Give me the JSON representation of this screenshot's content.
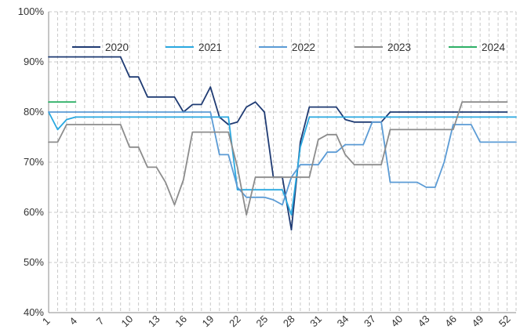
{
  "chart_data": {
    "type": "line",
    "title": "",
    "xlabel": "",
    "ylabel": "",
    "ylim": [
      40,
      100
    ],
    "y_ticks": [
      "40%",
      "50%",
      "60%",
      "70%",
      "80%",
      "90%",
      "100%"
    ],
    "y_tick_values": [
      40,
      50,
      60,
      70,
      80,
      90,
      100
    ],
    "x_ticks": [
      "1",
      "4",
      "7",
      "10",
      "13",
      "16",
      "19",
      "22",
      "25",
      "28",
      "31",
      "34",
      "37",
      "40",
      "43",
      "46",
      "49",
      "52"
    ],
    "x_range": [
      1,
      53
    ],
    "grid": true,
    "legend_position": "top",
    "series": [
      {
        "name": "2020",
        "color": "#1f3b73",
        "points": [
          [
            1,
            91
          ],
          [
            2,
            91
          ],
          [
            3,
            91
          ],
          [
            4,
            91
          ],
          [
            5,
            91
          ],
          [
            6,
            91
          ],
          [
            7,
            91
          ],
          [
            8,
            91
          ],
          [
            9,
            91
          ],
          [
            10,
            87
          ],
          [
            11,
            87
          ],
          [
            12,
            83
          ],
          [
            13,
            83
          ],
          [
            14,
            83
          ],
          [
            15,
            83
          ],
          [
            16,
            80
          ],
          [
            17,
            81.5
          ],
          [
            18,
            81.5
          ],
          [
            19,
            85
          ],
          [
            20,
            79
          ],
          [
            21,
            77.5
          ],
          [
            22,
            78
          ],
          [
            23,
            81
          ],
          [
            24,
            82
          ],
          [
            25,
            80
          ],
          [
            26,
            67
          ],
          [
            27,
            67
          ],
          [
            28,
            56.5
          ],
          [
            29,
            74
          ],
          [
            30,
            81
          ],
          [
            31,
            81
          ],
          [
            32,
            81
          ],
          [
            33,
            81
          ],
          [
            34,
            78.5
          ],
          [
            35,
            78
          ],
          [
            36,
            78
          ],
          [
            37,
            78
          ],
          [
            38,
            78
          ],
          [
            39,
            80
          ],
          [
            40,
            80
          ],
          [
            41,
            80
          ],
          [
            42,
            80
          ],
          [
            43,
            80
          ],
          [
            44,
            80
          ],
          [
            45,
            80
          ],
          [
            46,
            80
          ],
          [
            47,
            80
          ],
          [
            48,
            80
          ],
          [
            49,
            80
          ],
          [
            50,
            80
          ],
          [
            51,
            80
          ],
          [
            52,
            80
          ]
        ]
      },
      {
        "name": "2021",
        "color": "#29a8e0",
        "points": [
          [
            1,
            80
          ],
          [
            2,
            76.5
          ],
          [
            3,
            78.5
          ],
          [
            4,
            79
          ],
          [
            5,
            79
          ],
          [
            6,
            79
          ],
          [
            7,
            79
          ],
          [
            8,
            79
          ],
          [
            9,
            79
          ],
          [
            10,
            79
          ],
          [
            11,
            79
          ],
          [
            12,
            79
          ],
          [
            13,
            79
          ],
          [
            14,
            79
          ],
          [
            15,
            79
          ],
          [
            16,
            79
          ],
          [
            17,
            79
          ],
          [
            18,
            79
          ],
          [
            19,
            79
          ],
          [
            20,
            79
          ],
          [
            21,
            79
          ],
          [
            22,
            64.5
          ],
          [
            23,
            64.5
          ],
          [
            24,
            64.5
          ],
          [
            25,
            64.5
          ],
          [
            26,
            64.5
          ],
          [
            27,
            64.5
          ],
          [
            28,
            59.5
          ],
          [
            29,
            73
          ],
          [
            30,
            79
          ],
          [
            31,
            79
          ],
          [
            32,
            79
          ],
          [
            33,
            79
          ],
          [
            34,
            79
          ],
          [
            35,
            79
          ],
          [
            36,
            79
          ],
          [
            37,
            79
          ],
          [
            38,
            79
          ],
          [
            39,
            79
          ],
          [
            40,
            79
          ],
          [
            41,
            79
          ],
          [
            42,
            79
          ],
          [
            43,
            79
          ],
          [
            44,
            79
          ],
          [
            45,
            79
          ],
          [
            46,
            79
          ],
          [
            47,
            79
          ],
          [
            48,
            79
          ],
          [
            49,
            79
          ],
          [
            50,
            79
          ],
          [
            51,
            79
          ],
          [
            52,
            79
          ],
          [
            53,
            79
          ]
        ]
      },
      {
        "name": "2022",
        "color": "#5b9bd5",
        "points": [
          [
            1,
            80
          ],
          [
            2,
            80
          ],
          [
            3,
            80
          ],
          [
            4,
            80
          ],
          [
            5,
            80
          ],
          [
            6,
            80
          ],
          [
            7,
            80
          ],
          [
            8,
            80
          ],
          [
            9,
            80
          ],
          [
            10,
            80
          ],
          [
            11,
            80
          ],
          [
            12,
            80
          ],
          [
            13,
            80
          ],
          [
            14,
            80
          ],
          [
            15,
            80
          ],
          [
            16,
            80
          ],
          [
            17,
            80
          ],
          [
            18,
            80
          ],
          [
            19,
            80
          ],
          [
            20,
            71.5
          ],
          [
            21,
            71.5
          ],
          [
            22,
            65
          ],
          [
            23,
            63
          ],
          [
            24,
            63
          ],
          [
            25,
            63
          ],
          [
            26,
            62.5
          ],
          [
            27,
            61.5
          ],
          [
            28,
            67
          ],
          [
            29,
            69.5
          ],
          [
            30,
            69.5
          ],
          [
            31,
            69.5
          ],
          [
            32,
            72
          ],
          [
            33,
            72
          ],
          [
            34,
            73.5
          ],
          [
            35,
            73.5
          ],
          [
            36,
            73.5
          ],
          [
            37,
            78
          ],
          [
            38,
            78
          ],
          [
            39,
            66
          ],
          [
            40,
            66
          ],
          [
            41,
            66
          ],
          [
            42,
            66
          ],
          [
            43,
            65
          ],
          [
            44,
            65
          ],
          [
            45,
            70
          ],
          [
            46,
            77.5
          ],
          [
            47,
            77.5
          ],
          [
            48,
            77.5
          ],
          [
            49,
            74
          ],
          [
            50,
            74
          ],
          [
            51,
            74
          ],
          [
            52,
            74
          ],
          [
            53,
            74
          ]
        ]
      },
      {
        "name": "2023",
        "color": "#8c8c8c",
        "points": [
          [
            1,
            74
          ],
          [
            2,
            74
          ],
          [
            3,
            77.5
          ],
          [
            4,
            77.5
          ],
          [
            5,
            77.5
          ],
          [
            6,
            77.5
          ],
          [
            7,
            77.5
          ],
          [
            8,
            77.5
          ],
          [
            9,
            77.5
          ],
          [
            10,
            73
          ],
          [
            11,
            73
          ],
          [
            12,
            69
          ],
          [
            13,
            69
          ],
          [
            14,
            66
          ],
          [
            15,
            61.5
          ],
          [
            16,
            66.5
          ],
          [
            17,
            76
          ],
          [
            18,
            76
          ],
          [
            19,
            76
          ],
          [
            20,
            76
          ],
          [
            21,
            76
          ],
          [
            22,
            69
          ],
          [
            23,
            59.5
          ],
          [
            24,
            67
          ],
          [
            25,
            67
          ],
          [
            26,
            67
          ],
          [
            27,
            67
          ],
          [
            28,
            67
          ],
          [
            29,
            67
          ],
          [
            30,
            67
          ],
          [
            31,
            74.5
          ],
          [
            32,
            75.5
          ],
          [
            33,
            75.5
          ],
          [
            34,
            71.5
          ],
          [
            35,
            69.5
          ],
          [
            36,
            69.5
          ],
          [
            37,
            69.5
          ],
          [
            38,
            69.5
          ],
          [
            39,
            76.5
          ],
          [
            40,
            76.5
          ],
          [
            41,
            76.5
          ],
          [
            42,
            76.5
          ],
          [
            43,
            76.5
          ],
          [
            44,
            76.5
          ],
          [
            45,
            76.5
          ],
          [
            46,
            76.5
          ],
          [
            47,
            82
          ],
          [
            48,
            82
          ],
          [
            49,
            82
          ],
          [
            50,
            82
          ],
          [
            51,
            82
          ],
          [
            52,
            82
          ]
        ]
      },
      {
        "name": "2024",
        "color": "#2eb067",
        "points": [
          [
            1,
            82
          ],
          [
            2,
            82
          ],
          [
            3,
            82
          ],
          [
            4,
            82
          ]
        ]
      }
    ]
  }
}
